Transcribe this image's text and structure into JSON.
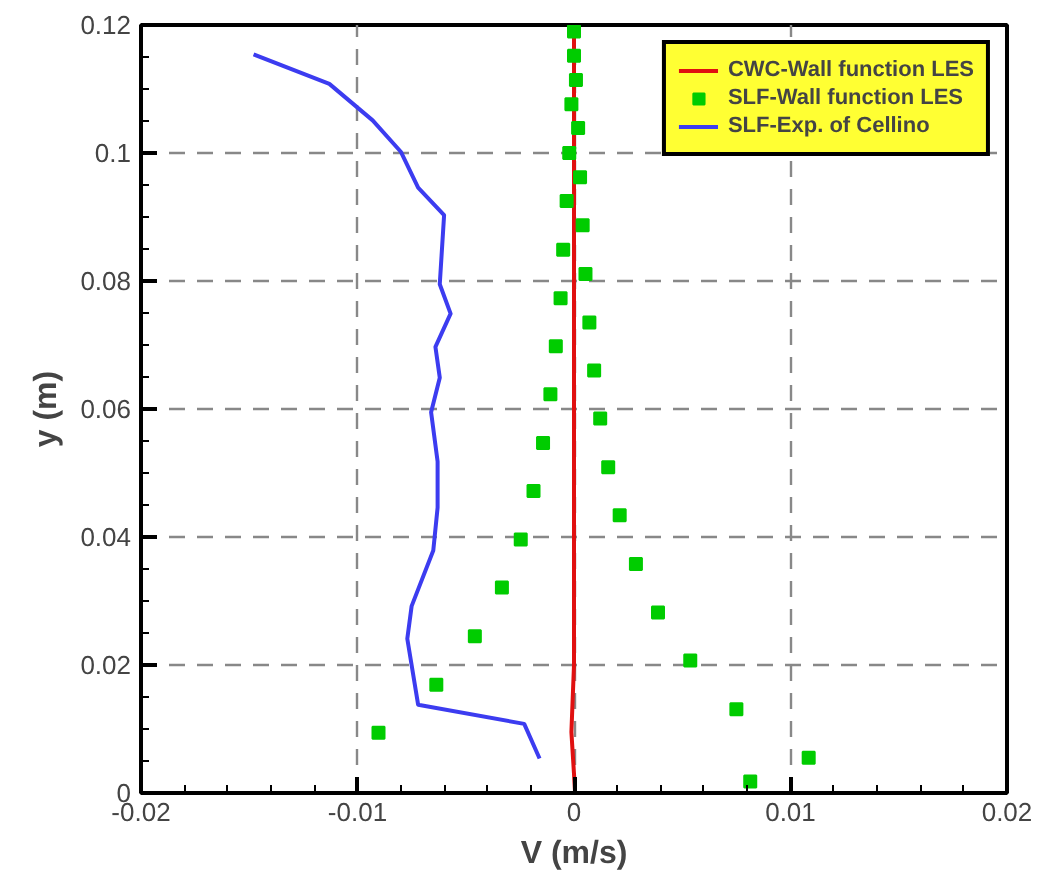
{
  "chart_data": {
    "type": "line",
    "xlabel": "V (m/s)",
    "ylabel": "y (m)",
    "xlim": [
      -0.02,
      0.02
    ],
    "ylim": [
      0,
      0.12
    ],
    "xticks": [
      -0.02,
      -0.01,
      0,
      0.01,
      0.02
    ],
    "yticks": [
      0,
      0.02,
      0.04,
      0.06,
      0.08,
      0.1,
      0.12
    ],
    "grid": true,
    "legend": "top right",
    "series": [
      {
        "name": "CWC-Wall function LES",
        "color": "#e01010",
        "marker": "none",
        "x": [
          5e-05,
          0,
          -0.00012,
          0,
          0,
          0,
          0
        ],
        "values": [
          0,
          0.003,
          0.0095,
          0.02,
          0.06,
          0.1,
          0.119
        ]
      },
      {
        "name": "SLF-Wall function LES",
        "type": "scatter",
        "color": "#00cc00",
        "marker": "square",
        "x": [
          0.00814,
          0.01084,
          -0.00903,
          0.0075,
          -0.00636,
          0.00537,
          -0.00458,
          0.00388,
          -0.00333,
          0.00286,
          -0.00246,
          0.00211,
          -0.00187,
          0.00158,
          -0.00143,
          0.00121,
          -0.00109,
          0.00093,
          -0.00084,
          0.00071,
          -0.00062,
          0.00053,
          -0.0005,
          0.0004,
          -0.00034,
          0.00028,
          -0.00022,
          0.00019,
          -0.00012,
          9e-05,
          0,
          0
        ],
        "values": [
          0.0018,
          0.0055,
          0.0094,
          0.0131,
          0.0169,
          0.0207,
          0.0245,
          0.0282,
          0.0321,
          0.0358,
          0.0396,
          0.0434,
          0.0472,
          0.0509,
          0.0547,
          0.0585,
          0.0623,
          0.066,
          0.0698,
          0.0735,
          0.0773,
          0.0811,
          0.0849,
          0.0887,
          0.0925,
          0.0962,
          0.1,
          0.1039,
          0.1076,
          0.1114,
          0.1152,
          0.119
        ]
      },
      {
        "name": "SLF-Exp. of Cellino",
        "color": "#3c3cf0",
        "marker": "none",
        "x": [
          -0.00159,
          -0.0023,
          -0.0072,
          -0.0077,
          -0.0075,
          -0.0065,
          -0.0063,
          -0.0063,
          -0.0066,
          -0.0062,
          -0.0064,
          -0.0057,
          -0.0062,
          -0.006,
          -0.0072,
          -0.008,
          -0.0093,
          -0.0113,
          -0.0148
        ],
        "values": [
          0.0054,
          0.0108,
          0.0138,
          0.0241,
          0.0292,
          0.0379,
          0.0446,
          0.0518,
          0.0595,
          0.0649,
          0.0697,
          0.0749,
          0.0795,
          0.0903,
          0.0946,
          0.1002,
          0.1051,
          0.1108,
          0.1154
        ]
      }
    ]
  }
}
